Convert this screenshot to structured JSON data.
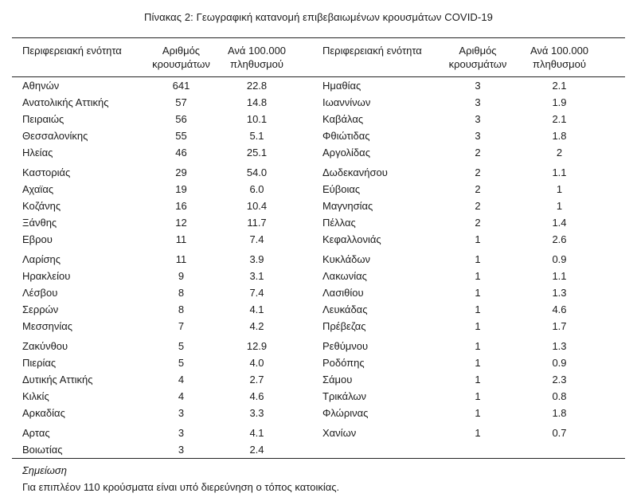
{
  "title": "Πίνακας 2: Γεωγραφική κατανομή επιβεβαιωμένων κρουσμάτων COVID-19",
  "table": {
    "header": {
      "region": "Περιφερειακή ενότητα",
      "cases": "Αριθμός κρουσμάτων",
      "rate": "Ανά 100.000 πληθυσμού"
    },
    "groups": [
      {
        "rows": [
          {
            "l": [
              "Αθηνών",
              "641",
              "22.8"
            ],
            "r": [
              "Ημαθίας",
              "3",
              "2.1"
            ]
          },
          {
            "l": [
              "Ανατολικής Αττικής",
              "57",
              "14.8"
            ],
            "r": [
              "Ιωαννίνων",
              "3",
              "1.9"
            ]
          },
          {
            "l": [
              "Πειραιώς",
              "56",
              "10.1"
            ],
            "r": [
              "Καβάλας",
              "3",
              "2.1"
            ]
          },
          {
            "l": [
              "Θεσσαλονίκης",
              "55",
              "5.1"
            ],
            "r": [
              "Φθιώτιδας",
              "3",
              "1.8"
            ]
          },
          {
            "l": [
              "Ηλείας",
              "46",
              "25.1"
            ],
            "r": [
              "Αργολίδας",
              "2",
              "2"
            ]
          }
        ]
      },
      {
        "rows": [
          {
            "l": [
              "Καστοριάς",
              "29",
              "54.0"
            ],
            "r": [
              "Δωδεκανήσου",
              "2",
              "1.1"
            ]
          },
          {
            "l": [
              "Αχαϊας",
              "19",
              "6.0"
            ],
            "r": [
              "Εύβοιας",
              "2",
              "1"
            ]
          },
          {
            "l": [
              "Κοζάνης",
              "16",
              "10.4"
            ],
            "r": [
              "Μαγνησίας",
              "2",
              "1"
            ]
          },
          {
            "l": [
              "Ξάνθης",
              "12",
              "11.7"
            ],
            "r": [
              "Πέλλας",
              "2",
              "1.4"
            ]
          },
          {
            "l": [
              "Εβρου",
              "11",
              "7.4"
            ],
            "r": [
              "Κεφαλλονιάς",
              "1",
              "2.6"
            ]
          }
        ]
      },
      {
        "rows": [
          {
            "l": [
              "Λαρίσης",
              "11",
              "3.9"
            ],
            "r": [
              "Κυκλάδων",
              "1",
              "0.9"
            ]
          },
          {
            "l": [
              "Ηρακλείου",
              "9",
              "3.1"
            ],
            "r": [
              "Λακωνίας",
              "1",
              "1.1"
            ]
          },
          {
            "l": [
              "Λέσβου",
              "8",
              "7.4"
            ],
            "r": [
              "Λασιθίου",
              "1",
              "1.3"
            ]
          },
          {
            "l": [
              "Σερρών",
              "8",
              "4.1"
            ],
            "r": [
              "Λευκάδας",
              "1",
              "4.6"
            ]
          },
          {
            "l": [
              "Μεσσηνίας",
              "7",
              "4.2"
            ],
            "r": [
              "Πρέβεζας",
              "1",
              "1.7"
            ]
          }
        ]
      },
      {
        "rows": [
          {
            "l": [
              "Ζακύνθου",
              "5",
              "12.9"
            ],
            "r": [
              "Ρεθύμνου",
              "1",
              "1.3"
            ]
          },
          {
            "l": [
              "Πιερίας",
              "5",
              "4.0"
            ],
            "r": [
              "Ροδόπης",
              "1",
              "0.9"
            ]
          },
          {
            "l": [
              "Δυτικής Αττικής",
              "4",
              "2.7"
            ],
            "r": [
              "Σάμου",
              "1",
              "2.3"
            ]
          },
          {
            "l": [
              "Κιλκίς",
              "4",
              "4.6"
            ],
            "r": [
              "Τρικάλων",
              "1",
              "0.8"
            ]
          },
          {
            "l": [
              "Αρκαδίας",
              "3",
              "3.3"
            ],
            "r": [
              "Φλώρινας",
              "1",
              "1.8"
            ]
          }
        ]
      },
      {
        "rows": [
          {
            "l": [
              "Αρτας",
              "3",
              "4.1"
            ],
            "r": [
              "Χανίων",
              "1",
              "0.7"
            ]
          },
          {
            "l": [
              "Βοιωτίας",
              "3",
              "2.4"
            ],
            "r": null
          }
        ]
      }
    ]
  },
  "note": {
    "label": "Σημείωση",
    "text": "Για επιπλέον 110 κρούσματα είναι υπό διερεύνηση ο τόπος κατοικίας."
  },
  "colors": {
    "text": "#1b1b1b",
    "rule": "#222222",
    "background": "#ffffff"
  }
}
